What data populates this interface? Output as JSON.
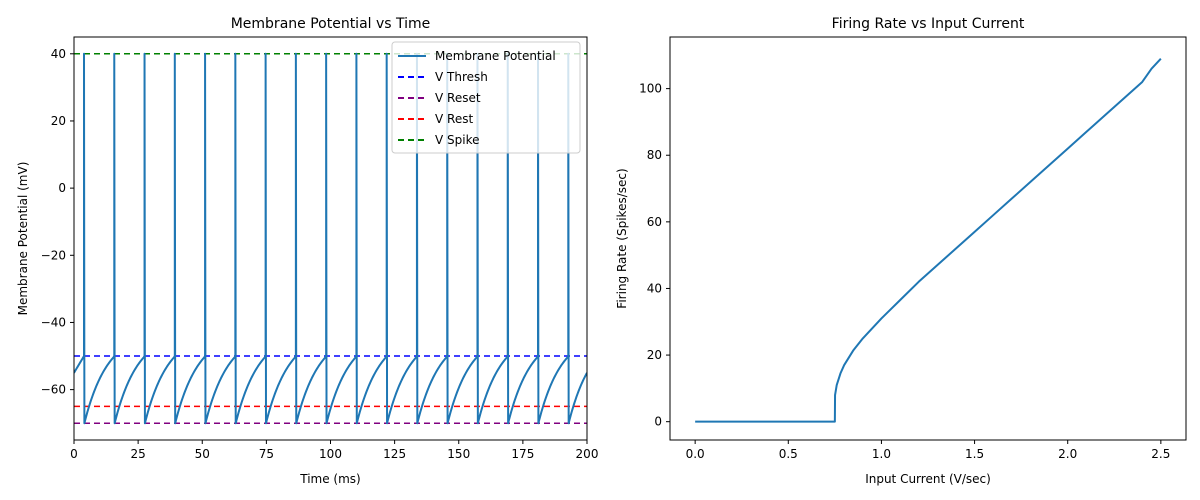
{
  "figure": {
    "background": "#ffffff"
  },
  "chart_data": [
    {
      "type": "line",
      "title": "Membrane Potential vs Time",
      "xlabel": "Time (ms)",
      "ylabel": "Membrane Potential (mV)",
      "xlim": [
        0,
        200
      ],
      "ylim": [
        -75,
        45
      ],
      "xticks": [
        0,
        25,
        50,
        75,
        100,
        125,
        150,
        175,
        200
      ],
      "yticks": [
        -60,
        -40,
        -20,
        0,
        20,
        40
      ],
      "xtick_labels": [
        "0",
        "25",
        "50",
        "75",
        "100",
        "125",
        "150",
        "175",
        "200"
      ],
      "ytick_labels": [
        "−60",
        "−40",
        "−20",
        "0",
        "20",
        "40"
      ],
      "trace": {
        "name": "Membrane Potential",
        "color": "#1f77b4",
        "start_value": -55,
        "spike_times": [
          3.9,
          15.7,
          27.5,
          39.3,
          51.1,
          62.9,
          74.7,
          86.5,
          98.3,
          110.1,
          121.9,
          133.7,
          145.5,
          157.3,
          169.1,
          180.9,
          192.7
        ],
        "spike_peak": 40,
        "reset_value": -70,
        "threshold": -50,
        "rise_tau_ms": 9.0,
        "end_value": -58
      },
      "hlines": [
        {
          "name": "V Thresh",
          "value": -50,
          "color": "#0000ff",
          "style": "dashed"
        },
        {
          "name": "V Reset",
          "value": -70,
          "color": "#800080",
          "style": "dashed"
        },
        {
          "name": "V Rest",
          "value": -65,
          "color": "#ff0000",
          "style": "dashed"
        },
        {
          "name": "V Spike",
          "value": 40,
          "color": "#008000",
          "style": "dashed"
        }
      ],
      "legend": {
        "placement": "top-right",
        "entries": [
          "Membrane Potential",
          "V Thresh",
          "V Reset",
          "V Rest",
          "V Spike"
        ]
      }
    },
    {
      "type": "line",
      "title": "Firing Rate vs Input Current",
      "xlabel": "Input Current (V/sec)",
      "ylabel": "Firing Rate (Spikes/sec)",
      "xlim": [
        -0.135,
        2.635
      ],
      "ylim": [
        -5.5,
        115.5
      ],
      "xticks": [
        0.0,
        0.5,
        1.0,
        1.5,
        2.0,
        2.5
      ],
      "yticks": [
        0,
        20,
        40,
        60,
        80,
        100
      ],
      "xtick_labels": [
        "0.0",
        "0.5",
        "1.0",
        "1.5",
        "2.0",
        "2.5"
      ],
      "ytick_labels": [
        "0",
        "20",
        "40",
        "60",
        "80",
        "100"
      ],
      "series": {
        "name": "Firing Rate",
        "color": "#1f77b4",
        "x": [
          0.0,
          0.75,
          0.751,
          0.76,
          0.78,
          0.8,
          0.85,
          0.9,
          1.0,
          1.1,
          1.2,
          1.3,
          1.4,
          1.5,
          1.6,
          1.7,
          1.8,
          1.9,
          2.0,
          2.1,
          2.2,
          2.3,
          2.4,
          2.45,
          2.5
        ],
        "y": [
          0,
          0,
          8,
          11,
          14.5,
          17,
          21.5,
          25,
          31,
          36.5,
          42,
          47,
          52,
          57,
          62,
          67,
          72,
          77,
          82,
          87,
          92,
          97,
          102,
          106,
          109
        ]
      }
    }
  ]
}
